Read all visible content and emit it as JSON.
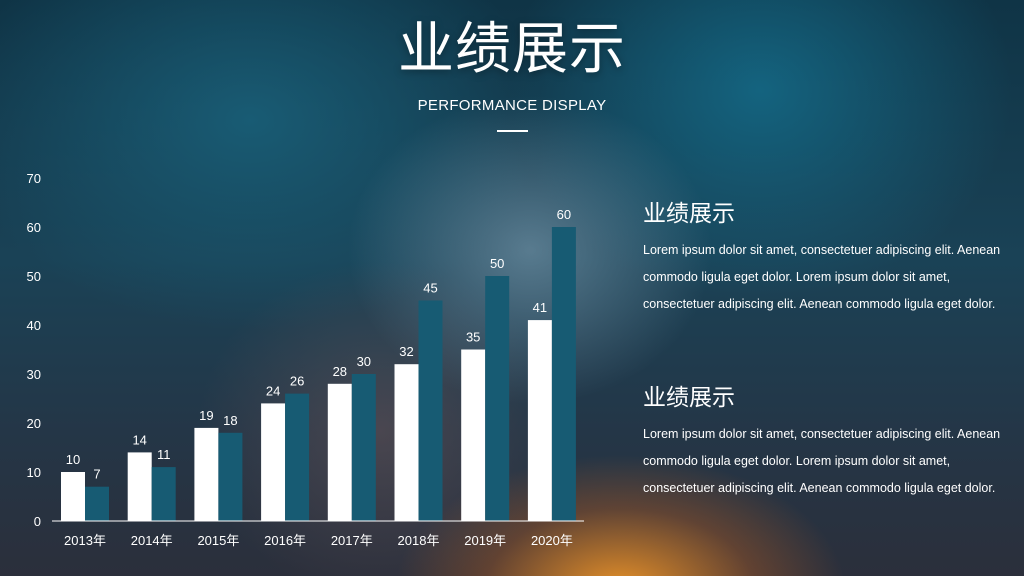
{
  "header": {
    "title": "业绩展示",
    "subtitle": "PERFORMANCE DISPLAY"
  },
  "chart_data": {
    "type": "bar",
    "categories": [
      "2013年",
      "2014年",
      "2015年",
      "2016年",
      "2017年",
      "2018年",
      "2019年",
      "2020年"
    ],
    "series": [
      {
        "values": [
          10,
          14,
          19,
          24,
          28,
          32,
          35,
          41
        ],
        "color": "#ffffff"
      },
      {
        "values": [
          7,
          11,
          18,
          26,
          30,
          45,
          50,
          60
        ],
        "color": "#175b73"
      }
    ],
    "yticks": [
      0,
      10,
      20,
      30,
      40,
      50,
      60,
      70
    ],
    "ylim": [
      0,
      70
    ],
    "grid": false,
    "data_labels": true
  },
  "text_blocks": [
    {
      "heading": "业绩展示",
      "body": "Lorem ipsum dolor sit amet, consectetuer adipiscing elit. Aenean commodo ligula eget dolor. Lorem ipsum dolor sit amet, consectetuer adipiscing elit. Aenean commodo ligula eget dolor."
    },
    {
      "heading": "业绩展示",
      "body": "Lorem ipsum dolor sit amet, consectetuer adipiscing elit. Aenean commodo ligula eget dolor. Lorem ipsum dolor sit amet, consectetuer adipiscing elit. Aenean commodo ligula eget dolor."
    }
  ]
}
